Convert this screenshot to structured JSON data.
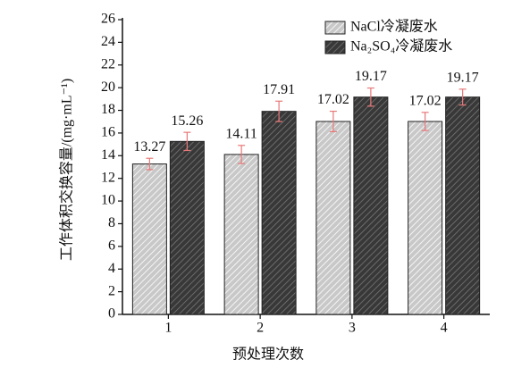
{
  "chart_data": {
    "type": "bar",
    "x_label": "预处理次数",
    "y_label": "工作体积交换容量/(mg·mL⁻¹)",
    "categories": [
      "1",
      "2",
      "3",
      "4"
    ],
    "series": [
      {
        "name": "NaCl冷凝废水",
        "color": "#c8c8c8",
        "values": [
          13.27,
          14.11,
          17.02,
          17.02
        ],
        "errors": [
          0.5,
          0.8,
          0.9,
          0.8
        ]
      },
      {
        "name": "Na₂SO₄冷凝废水",
        "color": "#383838",
        "values": [
          15.26,
          17.91,
          19.17,
          19.17
        ],
        "errors": [
          0.8,
          0.9,
          0.8,
          0.7
        ]
      }
    ],
    "error_color": "#e87878",
    "ylim": [
      0,
      26
    ],
    "yticks": [
      0,
      2,
      4,
      6,
      8,
      10,
      12,
      14,
      16,
      18,
      20,
      22,
      24,
      26
    ],
    "legend": "upper right"
  }
}
